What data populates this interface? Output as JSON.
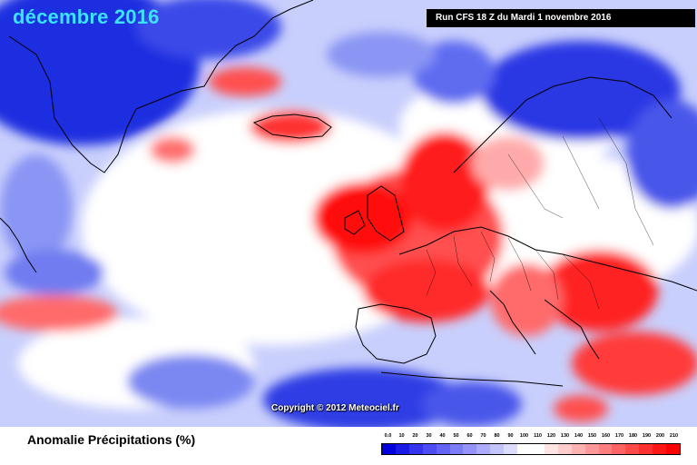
{
  "title": "décembre 2016",
  "run_info": "Run CFS 18 Z du Mardi 1 novembre 2016",
  "copyright": "Copyright © 2012 Meteociel.fr",
  "legend": {
    "title": "Anomalie Précipitations (%)",
    "ticks": [
      "0.0",
      "10",
      "20",
      "30",
      "40",
      "50",
      "60",
      "70",
      "80",
      "90",
      "100",
      "110",
      "120",
      "130",
      "140",
      "150",
      "160",
      "170",
      "180",
      "190",
      "200",
      "210"
    ],
    "colors": [
      "#0000dd",
      "#1a1ae6",
      "#3434ee",
      "#4c4cf2",
      "#6464f4",
      "#7c7cf6",
      "#9494f8",
      "#acacfa",
      "#c4c4fc",
      "#dcdcfe",
      "#ffffff",
      "#ffffff",
      "#ffe4e4",
      "#ffcccc",
      "#ffb2b2",
      "#ff9999",
      "#ff7f7f",
      "#ff6464",
      "#ff4a4a",
      "#ff3030",
      "#ff1616",
      "#ff0000"
    ]
  },
  "map_colors": {
    "deficit_strong": "#1f2fe0",
    "deficit": "#6f7cf0",
    "deficit_light": "#b9c1fb",
    "neutral": "#ffffff",
    "excess_light": "#ffb8b8",
    "excess": "#ff5a5a",
    "excess_strong": "#ff0a0a"
  }
}
